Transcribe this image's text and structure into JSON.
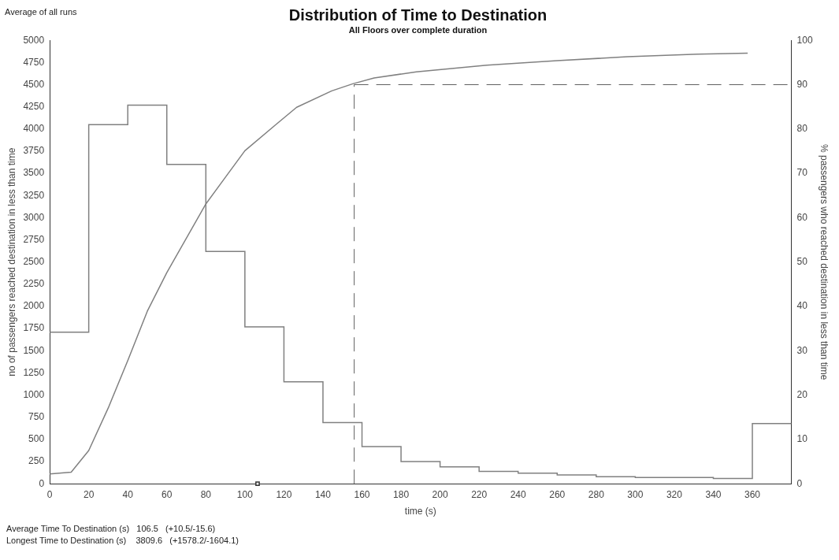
{
  "chart_data": {
    "type": "histogram",
    "title": "Distribution of Time to Destination",
    "subtitle": "All Floors over complete duration",
    "xlabel": "time (s)",
    "ylabel": "no of passengers reached destination in less than time",
    "y2label": "% passengers who reached destination in less than time",
    "bins": [
      0,
      20,
      40,
      60,
      80,
      100,
      120,
      140,
      160,
      180,
      200,
      220,
      240,
      260,
      280,
      300,
      320,
      340,
      360,
      380
    ],
    "series": [
      {
        "color": "#808080",
        "values": [
          1710,
          4050,
          4270,
          3600,
          2620,
          1770,
          1150,
          690,
          420,
          250,
          190,
          140,
          120,
          100,
          80,
          70,
          70,
          60,
          680
        ]
      },
      {
        "type": "line",
        "axis": "y2",
        "color": "#808080",
        "x": [
          0,
          11,
          20,
          30,
          40,
          50,
          60,
          80,
          90,
          100,
          115.6,
          126.5,
          144.5,
          155.3,
          166.2,
          187.8,
          224,
          260,
          296,
          332,
          357.6
        ],
        "values": [
          2.2,
          2.6,
          7.5,
          17.1,
          27.8,
          38.9,
          47.6,
          63.1,
          69.1,
          75.1,
          80.9,
          84.9,
          88.6,
          90.2,
          91.5,
          92.9,
          94.4,
          95.4,
          96.3,
          96.9,
          97.1
        ]
      },
      {
        "type": "scatter",
        "color": "#333333",
        "marker": "square",
        "x": [
          106.5
        ],
        "values": [
          0
        ]
      }
    ],
    "xlim": [
      0,
      380
    ],
    "xticks": [
      0,
      20,
      40,
      60,
      80,
      100,
      120,
      140,
      160,
      180,
      200,
      220,
      240,
      260,
      280,
      300,
      320,
      340,
      360
    ],
    "ylim": [
      0,
      5000
    ],
    "yticks": [
      0,
      250,
      500,
      750,
      1000,
      1250,
      1500,
      1750,
      2000,
      2250,
      2500,
      2750,
      3000,
      3250,
      3500,
      3750,
      4000,
      4250,
      4500,
      4750,
      5000
    ],
    "y2lim": [
      0,
      100
    ],
    "y2ticks": [
      0,
      10,
      20,
      30,
      40,
      50,
      60,
      70,
      80,
      90,
      100
    ],
    "ref_lines": [
      {
        "axis": "x",
        "value": 156,
        "color": "#606060",
        "line_style": "dashed"
      },
      {
        "axis": "y2",
        "value": 90,
        "color": "#606060",
        "line_style": "dashed"
      }
    ],
    "annotations": [
      "Average of all runs",
      "Average Time To Destination (s)   106.5   (+10.5/-15.6)",
      "Longest Time to Destination (s)    3809.6   (+1578.2/-1604.1)"
    ],
    "grid": false,
    "legend": false,
    "line_style": "solid"
  }
}
